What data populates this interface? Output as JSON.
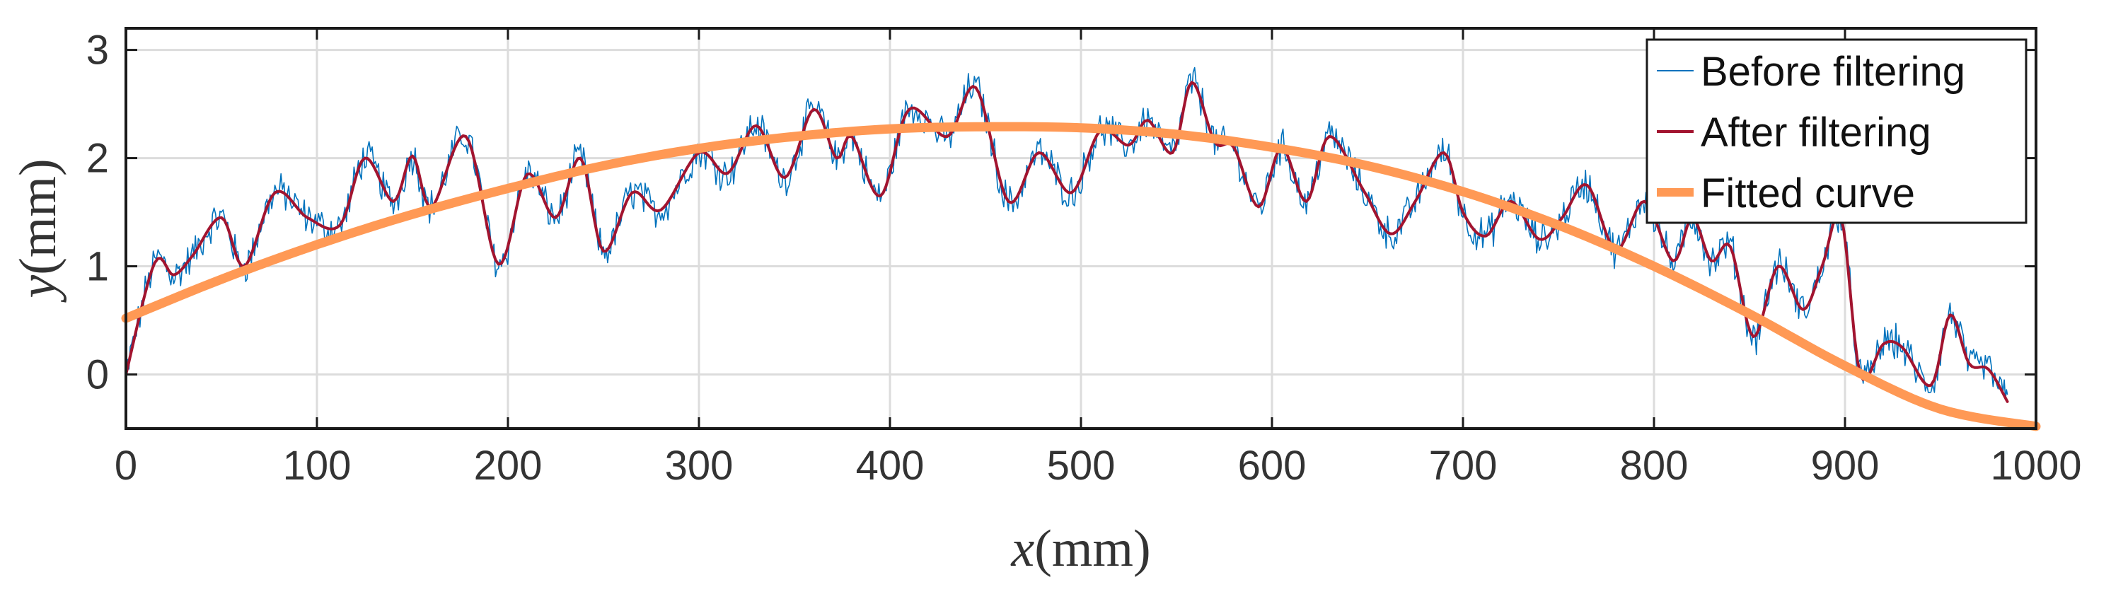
{
  "chart_data": {
    "type": "line",
    "xlabel_var": "x",
    "xlabel_unit": "(mm)",
    "ylabel_var": "y",
    "ylabel_unit": "(mm)",
    "xlim": [
      0,
      1000
    ],
    "ylim": [
      -0.5,
      3.2
    ],
    "xticks": [
      0,
      100,
      200,
      300,
      400,
      500,
      600,
      700,
      800,
      900,
      1000
    ],
    "yticks": [
      0,
      1,
      2,
      3
    ],
    "grid": true,
    "legend_position": "top-right",
    "series": [
      {
        "name": "Before filtering",
        "color": "#0072BD",
        "style": "thin noisy line",
        "noise_amplitude": 0.15,
        "x": [
          0,
          15,
          25,
          35,
          50,
          62,
          78,
          95,
          112,
          125,
          140,
          150,
          160,
          178,
          195,
          210,
          225,
          238,
          250,
          265,
          280,
          300,
          315,
          330,
          345,
          360,
          372,
          380,
          395,
          410,
          430,
          445,
          462,
          478,
          495,
          510,
          525,
          535,
          548,
          558,
          570,
          580,
          593,
          605,
          618,
          630,
          648,
          662,
          675,
          690,
          700,
          712,
          725,
          740,
          752,
          765,
          780,
          795,
          810,
          820,
          830,
          840,
          852,
          865,
          878,
          888,
          898,
          908,
          920,
          930,
          945,
          955,
          965,
          975,
          985
        ],
        "y": [
          0.0,
          1.03,
          0.92,
          1.1,
          1.45,
          1.0,
          1.68,
          1.45,
          1.38,
          2.0,
          1.6,
          2.02,
          1.55,
          2.2,
          1.02,
          1.85,
          1.45,
          2.0,
          1.14,
          1.68,
          1.52,
          2.05,
          1.86,
          2.3,
          1.82,
          2.45,
          2.0,
          2.2,
          1.65,
          2.45,
          2.2,
          2.65,
          1.6,
          2.05,
          1.68,
          2.25,
          2.12,
          2.35,
          2.05,
          2.7,
          2.15,
          2.1,
          1.55,
          2.1,
          1.6,
          2.2,
          1.7,
          1.3,
          1.6,
          2.05,
          1.5,
          1.28,
          1.6,
          1.25,
          1.45,
          1.75,
          1.15,
          1.6,
          1.05,
          1.45,
          1.05,
          1.18,
          0.35,
          1.0,
          0.6,
          1.0,
          1.45,
          0.0,
          0.28,
          0.25,
          -0.1,
          0.55,
          0.1,
          0.05,
          -0.25
        ]
      },
      {
        "name": "After filtering",
        "color": "#A2142F",
        "style": "medium line",
        "x": [
          0,
          15,
          25,
          35,
          50,
          62,
          78,
          95,
          112,
          125,
          140,
          150,
          160,
          178,
          195,
          210,
          225,
          238,
          250,
          265,
          280,
          300,
          315,
          330,
          345,
          360,
          372,
          380,
          395,
          410,
          430,
          445,
          462,
          478,
          495,
          510,
          525,
          535,
          548,
          558,
          570,
          580,
          593,
          605,
          618,
          630,
          648,
          662,
          675,
          690,
          700,
          712,
          725,
          740,
          752,
          765,
          780,
          795,
          810,
          820,
          830,
          840,
          852,
          865,
          878,
          888,
          898,
          908,
          920,
          930,
          945,
          955,
          965,
          975,
          985
        ],
        "y": [
          0.0,
          1.03,
          0.92,
          1.1,
          1.45,
          1.0,
          1.68,
          1.45,
          1.38,
          2.0,
          1.6,
          2.02,
          1.55,
          2.2,
          1.02,
          1.85,
          1.45,
          2.0,
          1.14,
          1.68,
          1.52,
          2.05,
          1.86,
          2.3,
          1.82,
          2.45,
          2.0,
          2.2,
          1.65,
          2.45,
          2.2,
          2.65,
          1.6,
          2.05,
          1.68,
          2.25,
          2.12,
          2.35,
          2.05,
          2.7,
          2.15,
          2.1,
          1.55,
          2.1,
          1.6,
          2.2,
          1.7,
          1.3,
          1.6,
          2.05,
          1.5,
          1.28,
          1.6,
          1.25,
          1.45,
          1.75,
          1.15,
          1.6,
          1.05,
          1.45,
          1.05,
          1.18,
          0.35,
          1.0,
          0.6,
          1.0,
          1.45,
          0.0,
          0.28,
          0.25,
          -0.1,
          0.55,
          0.1,
          0.05,
          -0.25
        ]
      },
      {
        "name": "Fitted curve",
        "color": "#FF9955",
        "style": "thick line",
        "x": [
          0,
          50,
          100,
          150,
          200,
          250,
          300,
          350,
          400,
          450,
          500,
          550,
          600,
          650,
          700,
          750,
          800,
          850,
          900,
          950,
          1000
        ],
        "y": [
          0.52,
          0.88,
          1.2,
          1.48,
          1.72,
          1.93,
          2.09,
          2.2,
          2.27,
          2.29,
          2.28,
          2.22,
          2.1,
          1.93,
          1.69,
          1.38,
          1.0,
          0.56,
          0.08,
          -0.32,
          -0.48
        ]
      }
    ]
  }
}
